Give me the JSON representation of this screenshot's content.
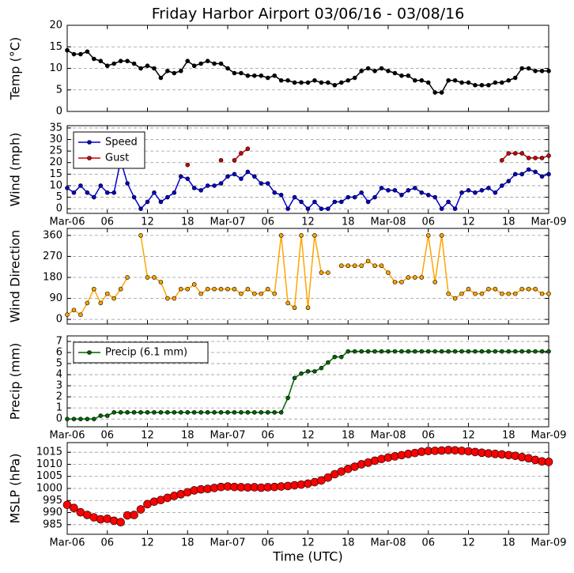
{
  "chart_data": [
    {
      "type": "line",
      "title": "Friday Harbor Airport 03/06/16 - 03/08/16",
      "ylabel": "Temp (°C)",
      "x": [
        0,
        1,
        2,
        3,
        4,
        5,
        6,
        7,
        8,
        9,
        10,
        11,
        12,
        13,
        14,
        15,
        16,
        17,
        18,
        19,
        20,
        21,
        22,
        23,
        24,
        25,
        26,
        27,
        28,
        29,
        30,
        31,
        32,
        33,
        34,
        35,
        36,
        37,
        38,
        39,
        40,
        41,
        42,
        43,
        44,
        45,
        46,
        47,
        48,
        49,
        50,
        51,
        52,
        53,
        54,
        55,
        56,
        57,
        58,
        59,
        60,
        61,
        62,
        63,
        64,
        65,
        66,
        67,
        68,
        69,
        70,
        71,
        72
      ],
      "values": [
        14.2,
        13.3,
        13.3,
        13.9,
        12.2,
        11.7,
        10.6,
        11.1,
        11.7,
        11.7,
        11.1,
        10.0,
        10.6,
        10.0,
        7.8,
        9.4,
        8.9,
        9.4,
        11.7,
        10.6,
        11.1,
        11.7,
        11.1,
        11.1,
        10.0,
        8.9,
        8.9,
        8.3,
        8.3,
        8.3,
        7.8,
        8.3,
        7.2,
        7.2,
        6.7,
        6.7,
        6.7,
        7.2,
        6.7,
        6.7,
        6.1,
        6.7,
        7.2,
        7.8,
        9.4,
        10.0,
        9.4,
        10.0,
        9.4,
        8.9,
        8.3,
        8.3,
        7.2,
        7.2,
        6.7,
        4.4,
        4.4,
        7.2,
        7.2,
        6.7,
        6.7,
        6.1,
        6.1,
        6.1,
        6.7,
        6.7,
        7.2,
        7.8,
        10.0,
        10.0,
        9.4,
        9.4,
        9.4
      ],
      "color": "#000000",
      "ylim": [
        0,
        20
      ],
      "yticks": [
        0,
        5,
        10,
        15,
        20
      ],
      "xlim": [
        0,
        72
      ],
      "xticks": [
        0,
        6,
        12,
        18,
        24,
        30,
        36,
        42,
        48,
        54,
        60,
        66,
        72
      ],
      "xticklabels": false,
      "grid": true
    },
    {
      "type": "line",
      "ylabel": "Wind (mph)",
      "x": [
        0,
        1,
        2,
        3,
        4,
        5,
        6,
        7,
        8,
        9,
        10,
        11,
        12,
        13,
        14,
        15,
        16,
        17,
        18,
        19,
        20,
        21,
        22,
        23,
        24,
        25,
        26,
        27,
        28,
        29,
        30,
        31,
        32,
        33,
        34,
        35,
        36,
        37,
        38,
        39,
        40,
        41,
        42,
        43,
        44,
        45,
        46,
        47,
        48,
        49,
        50,
        51,
        52,
        53,
        54,
        55,
        56,
        57,
        58,
        59,
        60,
        61,
        62,
        63,
        64,
        65,
        66,
        67,
        68,
        69,
        70,
        71,
        72
      ],
      "series": [
        {
          "name": "Speed",
          "color": "#0000cc",
          "values": [
            9,
            7,
            10,
            7,
            5,
            10,
            7,
            7,
            21,
            11,
            5,
            0,
            3,
            7,
            3,
            5,
            7,
            14,
            13,
            9,
            8,
            10,
            10,
            11,
            14,
            15,
            13,
            16,
            14,
            11,
            11,
            7,
            6,
            0,
            5,
            3,
            0,
            3,
            0,
            0,
            3,
            3,
            5,
            5,
            7,
            3,
            5,
            9,
            8,
            8,
            6,
            8,
            9,
            7,
            6,
            5,
            0,
            3,
            0,
            7,
            8,
            7,
            8,
            9,
            7,
            10,
            12,
            15,
            15,
            17,
            16,
            14,
            15
          ]
        },
        {
          "name": "Gust",
          "color": "#cc0000",
          "values": [
            null,
            null,
            null,
            null,
            null,
            null,
            null,
            null,
            null,
            null,
            null,
            null,
            null,
            null,
            null,
            null,
            null,
            null,
            19,
            null,
            null,
            null,
            null,
            21,
            null,
            21,
            24,
            26,
            null,
            null,
            null,
            null,
            null,
            null,
            null,
            null,
            null,
            null,
            null,
            null,
            null,
            null,
            null,
            null,
            null,
            null,
            null,
            null,
            null,
            null,
            null,
            null,
            null,
            null,
            null,
            null,
            null,
            null,
            null,
            null,
            null,
            null,
            null,
            null,
            null,
            21,
            24,
            24,
            24,
            22,
            22,
            22,
            23
          ]
        }
      ],
      "ylim": [
        -2,
        36
      ],
      "yticks": [
        0,
        5,
        10,
        15,
        20,
        25,
        30,
        35
      ],
      "legend": "upper left",
      "xlim": [
        0,
        72
      ],
      "xticks": [
        {
          "value": 0,
          "label": "Mar-06"
        },
        {
          "value": 6,
          "label": "06"
        },
        {
          "value": 12,
          "label": "12"
        },
        {
          "value": 18,
          "label": "18"
        },
        {
          "value": 24,
          "label": "Mar-07"
        },
        {
          "value": 30,
          "label": "06"
        },
        {
          "value": 36,
          "label": "12"
        },
        {
          "value": 42,
          "label": "18"
        },
        {
          "value": 48,
          "label": "Mar-08"
        },
        {
          "value": 54,
          "label": "06"
        },
        {
          "value": 60,
          "label": "12"
        },
        {
          "value": 66,
          "label": "18"
        },
        {
          "value": 72,
          "label": "Mar-09"
        }
      ],
      "grid": true
    },
    {
      "type": "line",
      "ylabel": "Wind Direction",
      "x": [
        0,
        1,
        2,
        3,
        4,
        5,
        6,
        7,
        8,
        9,
        10,
        11,
        12,
        13,
        14,
        15,
        16,
        17,
        18,
        19,
        20,
        21,
        22,
        23,
        24,
        25,
        26,
        27,
        28,
        29,
        30,
        31,
        32,
        33,
        34,
        35,
        36,
        37,
        38,
        39,
        40,
        41,
        42,
        43,
        44,
        45,
        46,
        47,
        48,
        49,
        50,
        51,
        52,
        53,
        54,
        55,
        56,
        57,
        58,
        59,
        60,
        61,
        62,
        63,
        64,
        65,
        66,
        67,
        68,
        69,
        70,
        71,
        72
      ],
      "values": [
        20,
        40,
        20,
        70,
        130,
        70,
        110,
        90,
        130,
        180,
        null,
        360,
        180,
        180,
        160,
        90,
        90,
        130,
        130,
        150,
        110,
        130,
        130,
        130,
        130,
        130,
        110,
        130,
        110,
        110,
        130,
        110,
        360,
        70,
        50,
        360,
        50,
        360,
        200,
        200,
        null,
        230,
        230,
        230,
        230,
        250,
        230,
        230,
        200,
        160,
        160,
        180,
        180,
        180,
        360,
        160,
        360,
        110,
        90,
        110,
        130,
        110,
        110,
        130,
        130,
        110,
        110,
        110,
        130,
        130,
        130,
        110,
        110
      ],
      "color": "#ffa500",
      "ylim": [
        -20,
        390
      ],
      "yticks": [
        0,
        90,
        180,
        270,
        360
      ],
      "xlim": [
        0,
        72
      ],
      "xticks": [
        0,
        6,
        12,
        18,
        24,
        30,
        36,
        42,
        48,
        54,
        60,
        66,
        72
      ],
      "xticklabels": false,
      "grid": true
    },
    {
      "type": "line",
      "ylabel": "Precip (mm)",
      "x": [
        0,
        1,
        2,
        3,
        4,
        5,
        6,
        7,
        8,
        9,
        10,
        11,
        12,
        13,
        14,
        15,
        16,
        17,
        18,
        19,
        20,
        21,
        22,
        23,
        24,
        25,
        26,
        27,
        28,
        29,
        30,
        31,
        32,
        33,
        34,
        35,
        36,
        37,
        38,
        39,
        40,
        41,
        42,
        43,
        44,
        45,
        46,
        47,
        48,
        49,
        50,
        51,
        52,
        53,
        54,
        55,
        56,
        57,
        58,
        59,
        60,
        61,
        62,
        63,
        64,
        65,
        66,
        67,
        68,
        69,
        70,
        71,
        72
      ],
      "series": [
        {
          "name": "Precip (6.1 mm)",
          "color": "#006400",
          "values": [
            0,
            0,
            0,
            0,
            0,
            0.3,
            0.3,
            0.6,
            0.6,
            0.6,
            0.6,
            0.6,
            0.6,
            0.6,
            0.6,
            0.6,
            0.6,
            0.6,
            0.6,
            0.6,
            0.6,
            0.6,
            0.6,
            0.6,
            0.6,
            0.6,
            0.6,
            0.6,
            0.6,
            0.6,
            0.6,
            0.6,
            0.6,
            1.9,
            3.7,
            4.1,
            4.3,
            4.3,
            4.6,
            5.1,
            5.6,
            5.6,
            6.1,
            6.1,
            6.1,
            6.1,
            6.1,
            6.1,
            6.1,
            6.1,
            6.1,
            6.1,
            6.1,
            6.1,
            6.1,
            6.1,
            6.1,
            6.1,
            6.1,
            6.1,
            6.1,
            6.1,
            6.1,
            6.1,
            6.1,
            6.1,
            6.1,
            6.1,
            6.1,
            6.1,
            6.1,
            6.1,
            6.1
          ]
        }
      ],
      "ylim": [
        -0.7,
        7.5
      ],
      "yticks": [
        0,
        1,
        2,
        3,
        4,
        5,
        6,
        7
      ],
      "legend": "upper left",
      "xlim": [
        0,
        72
      ],
      "xticks": [
        {
          "value": 0,
          "label": "Mar-06"
        },
        {
          "value": 6,
          "label": "06"
        },
        {
          "value": 12,
          "label": "12"
        },
        {
          "value": 18,
          "label": "18"
        },
        {
          "value": 24,
          "label": "Mar-07"
        },
        {
          "value": 30,
          "label": "06"
        },
        {
          "value": 36,
          "label": "12"
        },
        {
          "value": 42,
          "label": "18"
        },
        {
          "value": 48,
          "label": "Mar-08"
        },
        {
          "value": 54,
          "label": "06"
        },
        {
          "value": 60,
          "label": "12"
        },
        {
          "value": 66,
          "label": "18"
        },
        {
          "value": 72,
          "label": "Mar-09"
        }
      ],
      "grid": true
    },
    {
      "type": "scatter",
      "ylabel": "MSLP (hPa)",
      "xlabel": "Time (UTC)",
      "x": [
        0,
        1,
        2,
        3,
        4,
        5,
        6,
        7,
        8,
        9,
        10,
        11,
        12,
        13,
        14,
        15,
        16,
        17,
        18,
        19,
        20,
        21,
        22,
        23,
        24,
        25,
        26,
        27,
        28,
        29,
        30,
        31,
        32,
        33,
        34,
        35,
        36,
        37,
        38,
        39,
        40,
        41,
        42,
        43,
        44,
        45,
        46,
        47,
        48,
        49,
        50,
        51,
        52,
        53,
        54,
        55,
        56,
        57,
        58,
        59,
        60,
        61,
        62,
        63,
        64,
        65,
        66,
        67,
        68,
        69,
        70,
        71,
        72
      ],
      "values": [
        993.2,
        991.9,
        990.1,
        989.0,
        988.0,
        987.2,
        987.4,
        986.6,
        986.0,
        988.8,
        989.0,
        991.3,
        993.5,
        994.5,
        995.2,
        996.1,
        996.9,
        997.6,
        998.4,
        999.2,
        999.6,
        999.8,
        1000.2,
        1000.6,
        1000.8,
        1000.6,
        1000.5,
        1000.4,
        1000.5,
        1000.3,
        1000.5,
        1000.6,
        1000.8,
        1001.0,
        1001.3,
        1001.6,
        1002.0,
        1002.6,
        1003.3,
        1004.5,
        1005.9,
        1007.0,
        1008.1,
        1009.0,
        1010.0,
        1010.7,
        1011.5,
        1012.2,
        1012.8,
        1013.3,
        1013.8,
        1014.3,
        1014.7,
        1015.2,
        1015.5,
        1015.6,
        1015.7,
        1015.9,
        1015.8,
        1015.6,
        1015.4,
        1015.1,
        1014.8,
        1014.5,
        1014.3,
        1014.1,
        1013.8,
        1013.5,
        1013.0,
        1012.5,
        1011.8,
        1011.2,
        1011.0
      ],
      "color": "#ff0000",
      "ylim": [
        981,
        1019
      ],
      "yticks": [
        985,
        990,
        995,
        1000,
        1005,
        1010,
        1015
      ],
      "xlim": [
        0,
        72
      ],
      "xticks": [
        {
          "value": 0,
          "label": "Mar-06"
        },
        {
          "value": 6,
          "label": "06"
        },
        {
          "value": 12,
          "label": "12"
        },
        {
          "value": 18,
          "label": "18"
        },
        {
          "value": 24,
          "label": "Mar-07"
        },
        {
          "value": 30,
          "label": "06"
        },
        {
          "value": 36,
          "label": "12"
        },
        {
          "value": 42,
          "label": "18"
        },
        {
          "value": 48,
          "label": "Mar-08"
        },
        {
          "value": 54,
          "label": "06"
        },
        {
          "value": 60,
          "label": "12"
        },
        {
          "value": 66,
          "label": "18"
        },
        {
          "value": 72,
          "label": "Mar-09"
        }
      ],
      "grid": true
    }
  ]
}
